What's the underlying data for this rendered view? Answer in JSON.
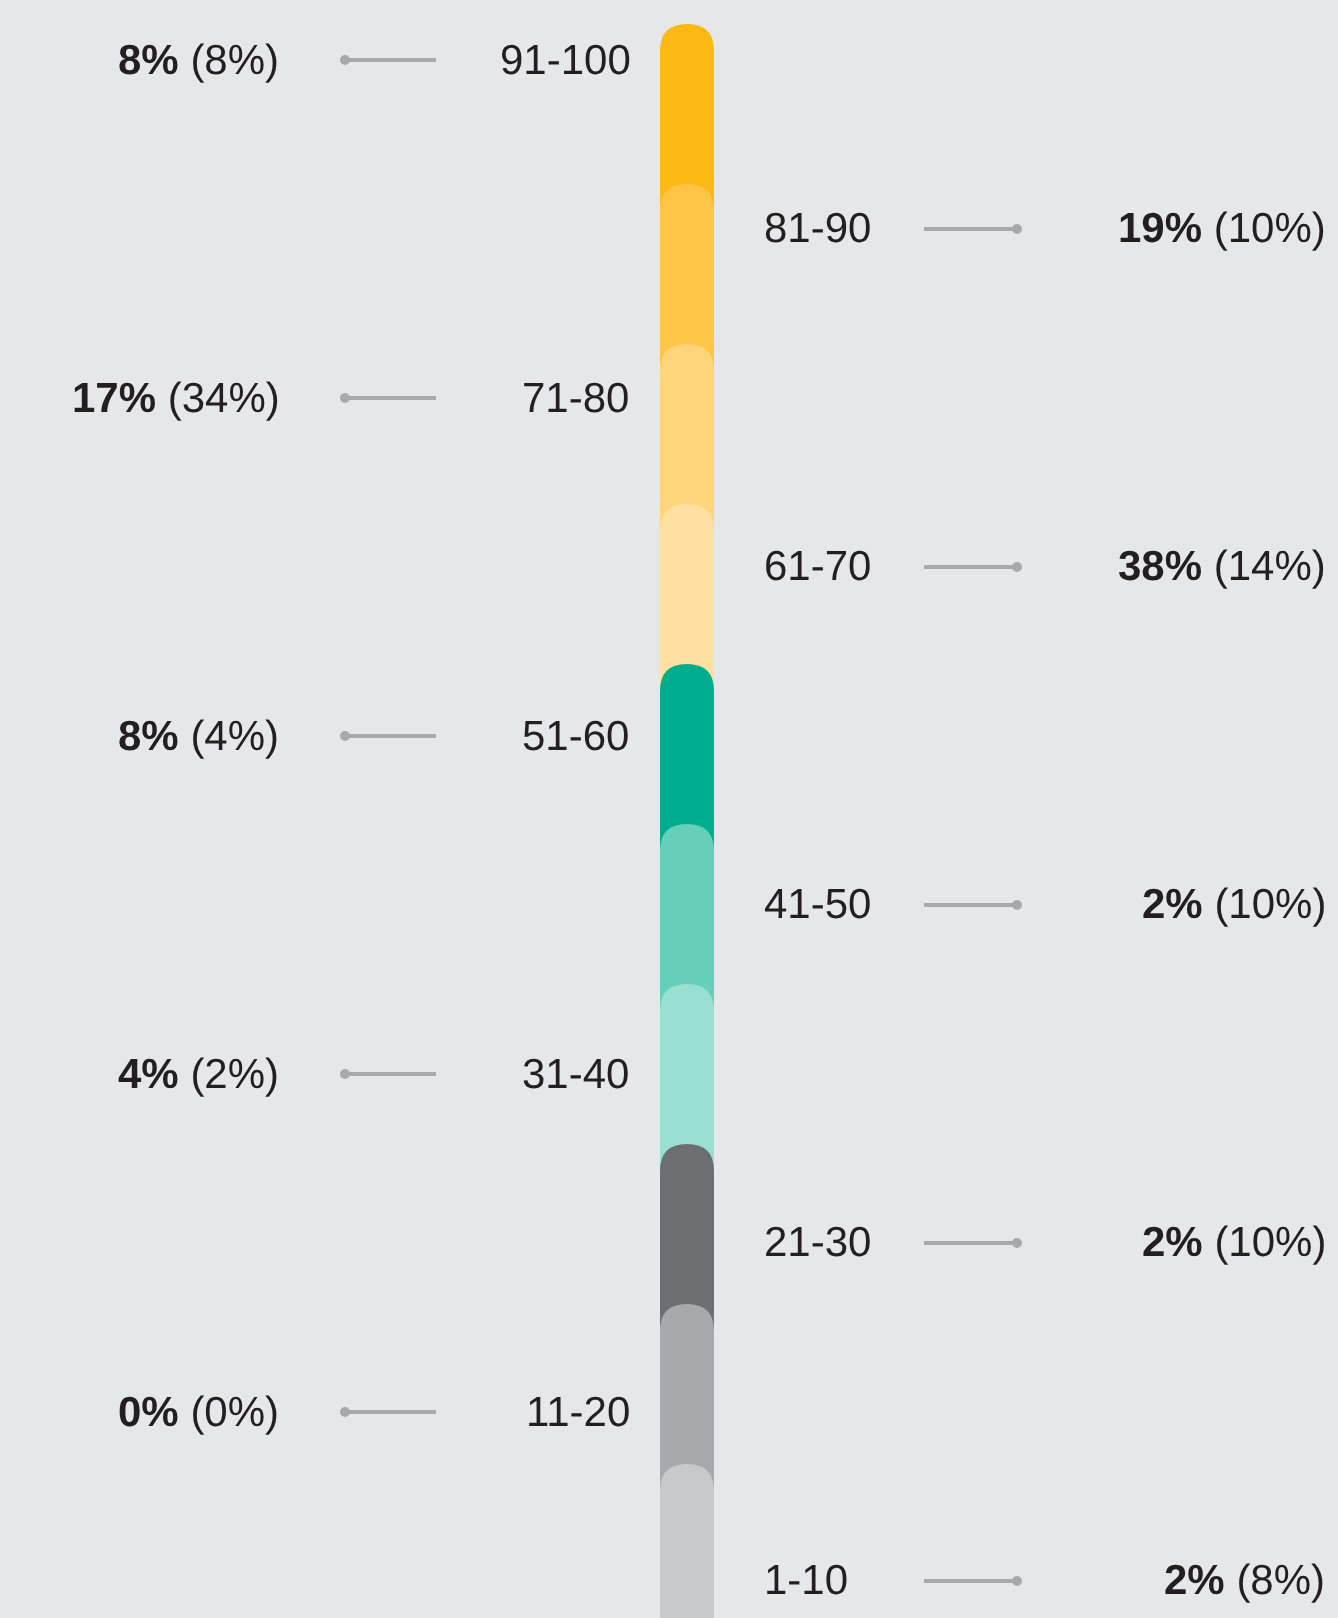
{
  "chart_data": {
    "type": "other",
    "categories": [
      "91-100",
      "81-90",
      "71-80",
      "61-70",
      "51-60",
      "41-50",
      "31-40",
      "21-30",
      "11-20",
      "1-10"
    ],
    "colors": [
      "#fdb913",
      "#fec546",
      "#fed57a",
      "#fee0a3",
      "#00ae8f",
      "#66cfb9",
      "#99dfd2",
      "#6d6e71",
      "#a7a9ac",
      "#c8c9cb"
    ],
    "series": [
      {
        "values": [
          8,
          19,
          17,
          38,
          8,
          2,
          4,
          2,
          0,
          2
        ],
        "value_labels": [
          "8%",
          "19%",
          "17%",
          "38%",
          "8%",
          "2%",
          "4%",
          "2%",
          "0%",
          "2%"
        ]
      },
      {
        "values": [
          8,
          10,
          34,
          14,
          4,
          10,
          2,
          10,
          0,
          8
        ],
        "value_labels": [
          "(8%)",
          "(10%)",
          "(34%)",
          "(14%)",
          "(4%)",
          "(10%)",
          "(2%)",
          "(10%)",
          "(0%)",
          "(8%)"
        ]
      }
    ]
  }
}
